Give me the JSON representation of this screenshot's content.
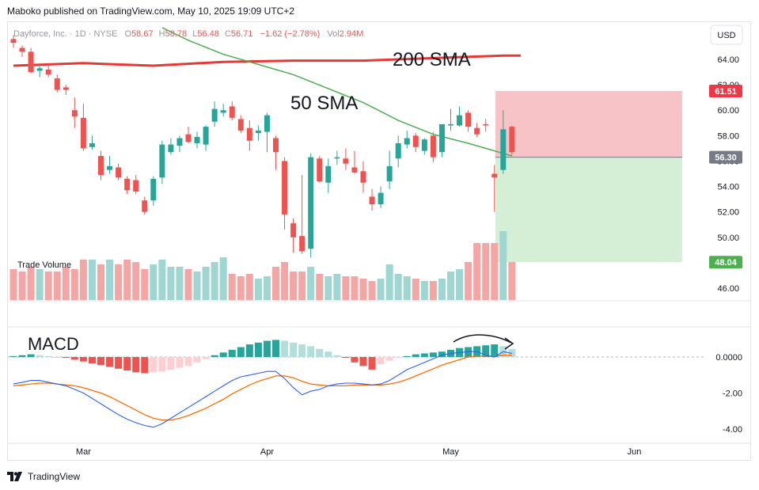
{
  "header": {
    "text": "Maboko published on TradingView.com, May 10, 2025 19:09 UTC+2"
  },
  "footer": {
    "brand": "TradingView",
    "logo_icon": "tradingview-logo-icon"
  },
  "legend": {
    "symbol": "Dayforce, Inc. · 1D · NYSE",
    "o_label": "O",
    "o": "58.67",
    "h_label": "H",
    "h": "58.78",
    "l_label": "L",
    "l": "56.48",
    "c_label": "C",
    "c": "56.71",
    "chg": "−1.62 (−2.78%)",
    "vol_label": "Vol",
    "vol": "2.94M"
  },
  "currency": "USD",
  "annotations": {
    "sma200": "200 SMA",
    "sma50": "50 SMA",
    "macd": "MACD"
  },
  "volume_label": "Trade Volume",
  "colors": {
    "up": "#26a69a",
    "down": "#ef5350",
    "sma200": "#e53935",
    "sma50": "#4caf50",
    "macd": "#2962ff",
    "signal": "#ff6d00",
    "stop": "#f7c3c6",
    "target": "#d5efd7"
  },
  "chart_data": {
    "type": "candlestick",
    "price_axis": {
      "min": 46,
      "max": 65,
      "ticks": [
        "64.00",
        "62.00",
        "60.00",
        "58.00",
        "56.00",
        "54.00",
        "52.00",
        "50.00",
        "48.00",
        "46.00"
      ]
    },
    "price_tags": [
      {
        "label": "61.51",
        "value": 61.51,
        "color": "#f23645"
      },
      {
        "label": "56.30",
        "value": 56.3,
        "color": "#787b86"
      },
      {
        "label": "48.04",
        "value": 48.04,
        "color": "#4caf50"
      }
    ],
    "position": {
      "entry": 56.3,
      "stop": 61.51,
      "target": 48.04
    },
    "x_labels": [
      {
        "label": "Mar",
        "index": 8
      },
      {
        "label": "Apr",
        "index": 29
      },
      {
        "label": "May",
        "index": 50
      },
      {
        "label": "Jun",
        "index": 71
      }
    ],
    "candles": [
      [
        65.6,
        65.9,
        64.9,
        65.3
      ],
      [
        64.9,
        65.1,
        64.2,
        64.6
      ],
      [
        64.6,
        64.9,
        62.9,
        63.0
      ],
      [
        63.1,
        63.6,
        62.6,
        63.3
      ],
      [
        63.2,
        63.6,
        62.6,
        62.8
      ],
      [
        62.5,
        62.8,
        61.4,
        61.6
      ],
      [
        61.8,
        62.0,
        61.2,
        61.6
      ],
      [
        60.0,
        61.0,
        58.6,
        59.5
      ],
      [
        59.4,
        60.5,
        56.8,
        57.0
      ],
      [
        57.1,
        58.0,
        56.9,
        57.4
      ],
      [
        56.4,
        56.8,
        54.5,
        54.9
      ],
      [
        55.3,
        56.4,
        55.0,
        55.6
      ],
      [
        55.5,
        55.8,
        54.5,
        54.7
      ],
      [
        54.6,
        54.8,
        53.4,
        53.7
      ],
      [
        54.5,
        54.9,
        53.4,
        53.6
      ],
      [
        52.9,
        53.2,
        51.8,
        52.0
      ],
      [
        52.9,
        54.8,
        52.5,
        54.6
      ],
      [
        54.7,
        57.6,
        54.2,
        57.3
      ],
      [
        56.7,
        57.8,
        56.5,
        57.3
      ],
      [
        57.2,
        58.0,
        56.7,
        57.8
      ],
      [
        58.1,
        58.7,
        57.4,
        57.5
      ],
      [
        57.4,
        58.3,
        57.0,
        57.9
      ],
      [
        57.3,
        58.8,
        56.8,
        58.7
      ],
      [
        59.1,
        60.7,
        58.7,
        60.1
      ],
      [
        59.8,
        60.5,
        59.5,
        60.0
      ],
      [
        60.3,
        60.7,
        59.2,
        59.4
      ],
      [
        59.3,
        59.6,
        58.2,
        58.4
      ],
      [
        58.6,
        59.2,
        56.8,
        57.6
      ],
      [
        58.2,
        58.8,
        57.6,
        58.4
      ],
      [
        58.3,
        59.8,
        56.7,
        59.6
      ],
      [
        57.8,
        58.0,
        55.3,
        56.7
      ],
      [
        56.0,
        56.3,
        50.6,
        51.8
      ],
      [
        51.1,
        51.5,
        48.8,
        50.0
      ],
      [
        50.1,
        54.9,
        48.7,
        48.9
      ],
      [
        49.1,
        56.6,
        48.4,
        56.3
      ],
      [
        56.2,
        56.4,
        54.3,
        54.4
      ],
      [
        54.3,
        56.2,
        53.5,
        55.6
      ],
      [
        56.2,
        56.8,
        55.7,
        56.3
      ],
      [
        56.2,
        57.0,
        55.3,
        55.8
      ],
      [
        55.5,
        56.8,
        55.0,
        55.1
      ],
      [
        55.2,
        56.0,
        53.5,
        54.3
      ],
      [
        53.2,
        53.8,
        52.1,
        52.6
      ],
      [
        52.6,
        54.0,
        52.3,
        53.5
      ],
      [
        54.4,
        56.8,
        53.8,
        55.6
      ],
      [
        56.2,
        58.0,
        55.5,
        57.4
      ],
      [
        57.3,
        58.4,
        57.0,
        57.8
      ],
      [
        58.0,
        58.2,
        56.7,
        57.1
      ],
      [
        56.8,
        57.8,
        56.5,
        57.7
      ],
      [
        58.0,
        58.3,
        55.9,
        56.3
      ],
      [
        56.7,
        58.8,
        56.3,
        58.9
      ],
      [
        58.8,
        60.1,
        58.4,
        58.9
      ],
      [
        58.8,
        60.3,
        58.7,
        59.6
      ],
      [
        59.8,
        60.0,
        58.3,
        58.7
      ],
      [
        58.6,
        59.0,
        57.9,
        58.1
      ],
      [
        58.9,
        59.3,
        58.3,
        58.8
      ],
      [
        55.0,
        55.7,
        52.0,
        54.7
      ],
      [
        55.3,
        60.0,
        55.0,
        58.5
      ],
      [
        58.7,
        58.8,
        56.5,
        56.7
      ]
    ],
    "volume": [
      1.3,
      1.2,
      1.4,
      1.3,
      1.2,
      1.2,
      1.4,
      1.3,
      1.7,
      1.7,
      1.5,
      1.7,
      1.5,
      1.7,
      1.6,
      1.3,
      1.5,
      1.7,
      1.4,
      1.4,
      1.3,
      1.2,
      1.4,
      1.6,
      1.8,
      1.1,
      1.0,
      1.1,
      0.9,
      1.0,
      1.4,
      1.6,
      1.2,
      1.2,
      1.4,
      1.1,
      1.0,
      1.1,
      1.0,
      1.0,
      0.9,
      0.8,
      0.9,
      1.5,
      1.1,
      1.0,
      0.9,
      0.8,
      0.8,
      0.9,
      1.2,
      1.3,
      1.6,
      2.4,
      2.4,
      2.4,
      2.9,
      1.6
    ],
    "sma200": [
      [
        0,
        63.5
      ],
      [
        8,
        63.7
      ],
      [
        16,
        63.5
      ],
      [
        24,
        63.8
      ],
      [
        32,
        63.9
      ],
      [
        40,
        63.9
      ],
      [
        48,
        64.1
      ],
      [
        56,
        64.3
      ],
      [
        58,
        64.3
      ]
    ],
    "sma50": [
      [
        17,
        66.5
      ],
      [
        20,
        65.5
      ],
      [
        24,
        64.4
      ],
      [
        28,
        63.6
      ],
      [
        32,
        62.8
      ],
      [
        36,
        61.7
      ],
      [
        40,
        60.6
      ],
      [
        44,
        59.2
      ],
      [
        48,
        58.1
      ],
      [
        52,
        57.4
      ],
      [
        55,
        56.8
      ],
      [
        57,
        56.4
      ]
    ],
    "macd_axis": {
      "min": -4.5,
      "max": 1.2,
      "ticks": [
        "0.0000",
        "-2.00",
        "-4.00"
      ]
    },
    "histogram": [
      0.05,
      0.1,
      0.15,
      0.1,
      0.05,
      0.0,
      -0.05,
      -0.15,
      -0.25,
      -0.35,
      -0.45,
      -0.55,
      -0.65,
      -0.75,
      -0.85,
      -0.9,
      -0.85,
      -0.8,
      -0.7,
      -0.6,
      -0.5,
      -0.3,
      -0.1,
      0.1,
      0.25,
      0.4,
      0.55,
      0.7,
      0.8,
      0.9,
      0.95,
      0.9,
      0.8,
      0.7,
      0.6,
      0.45,
      0.3,
      0.1,
      -0.05,
      -0.3,
      -0.5,
      -0.7,
      -0.4,
      -0.2,
      -0.05,
      0.05,
      0.15,
      0.2,
      0.25,
      0.3,
      0.4,
      0.5,
      0.55,
      0.6,
      0.65,
      0.7,
      0.6,
      0.45
    ],
    "macd_line": [
      -1.5,
      -1.4,
      -1.3,
      -1.3,
      -1.4,
      -1.5,
      -1.6,
      -1.8,
      -2.0,
      -2.3,
      -2.6,
      -2.9,
      -3.2,
      -3.45,
      -3.65,
      -3.8,
      -3.9,
      -3.7,
      -3.4,
      -3.1,
      -2.8,
      -2.5,
      -2.2,
      -1.9,
      -1.6,
      -1.3,
      -1.1,
      -1.0,
      -0.9,
      -0.8,
      -0.8,
      -1.2,
      -1.7,
      -2.1,
      -1.9,
      -1.8,
      -1.6,
      -1.5,
      -1.45,
      -1.45,
      -1.5,
      -1.55,
      -1.5,
      -1.3,
      -1.0,
      -0.7,
      -0.5,
      -0.3,
      -0.1,
      0.1,
      0.2,
      0.25,
      0.3,
      0.3,
      0.1,
      0.0,
      0.3,
      0.2
    ],
    "signal_line": [
      -1.6,
      -1.55,
      -1.5,
      -1.45,
      -1.45,
      -1.5,
      -1.55,
      -1.6,
      -1.7,
      -1.85,
      -2.0,
      -2.2,
      -2.45,
      -2.7,
      -2.95,
      -3.2,
      -3.4,
      -3.5,
      -3.5,
      -3.4,
      -3.25,
      -3.05,
      -2.85,
      -2.6,
      -2.35,
      -2.05,
      -1.8,
      -1.55,
      -1.35,
      -1.2,
      -1.05,
      -1.05,
      -1.15,
      -1.35,
      -1.5,
      -1.55,
      -1.6,
      -1.6,
      -1.6,
      -1.55,
      -1.55,
      -1.55,
      -1.55,
      -1.5,
      -1.4,
      -1.25,
      -1.05,
      -0.85,
      -0.65,
      -0.45,
      -0.3,
      -0.15,
      0.0,
      0.05,
      0.05,
      0.05,
      0.1,
      0.1
    ]
  }
}
